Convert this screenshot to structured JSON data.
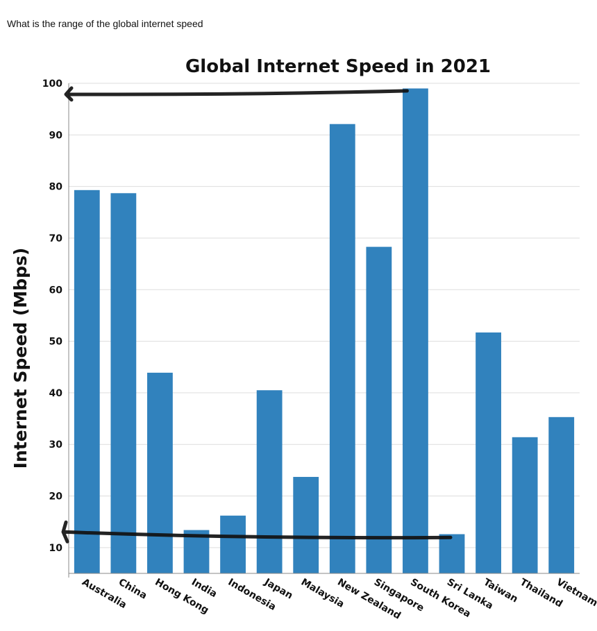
{
  "question": "What is the range of the global internet speed",
  "chart_data": {
    "type": "bar",
    "title": "Global Internet Speed in 2021",
    "xlabel": "",
    "ylabel": "Internet Speed (Mbps)",
    "categories": [
      "Australia",
      "China",
      "Hong Kong",
      "India",
      "Indonesia",
      "Japan",
      "Malaysia",
      "New Zealand",
      "Singapore",
      "South Korea",
      "Sri Lanka",
      "Taiwan",
      "Thailand",
      "Vietnam"
    ],
    "values": [
      79.3,
      78.7,
      43.9,
      13.4,
      16.2,
      40.5,
      23.7,
      92.1,
      68.3,
      99.0,
      12.6,
      51.7,
      31.4,
      35.3
    ],
    "ylim": [
      5,
      100
    ],
    "yticks": [
      10,
      20,
      30,
      40,
      50,
      60,
      70,
      80,
      90,
      100
    ],
    "grid": true,
    "bar_color": "#3182bd",
    "annotations": [
      {
        "type": "arrow",
        "points_to": 98
      },
      {
        "type": "arrow",
        "points_to": 12.5
      }
    ]
  }
}
